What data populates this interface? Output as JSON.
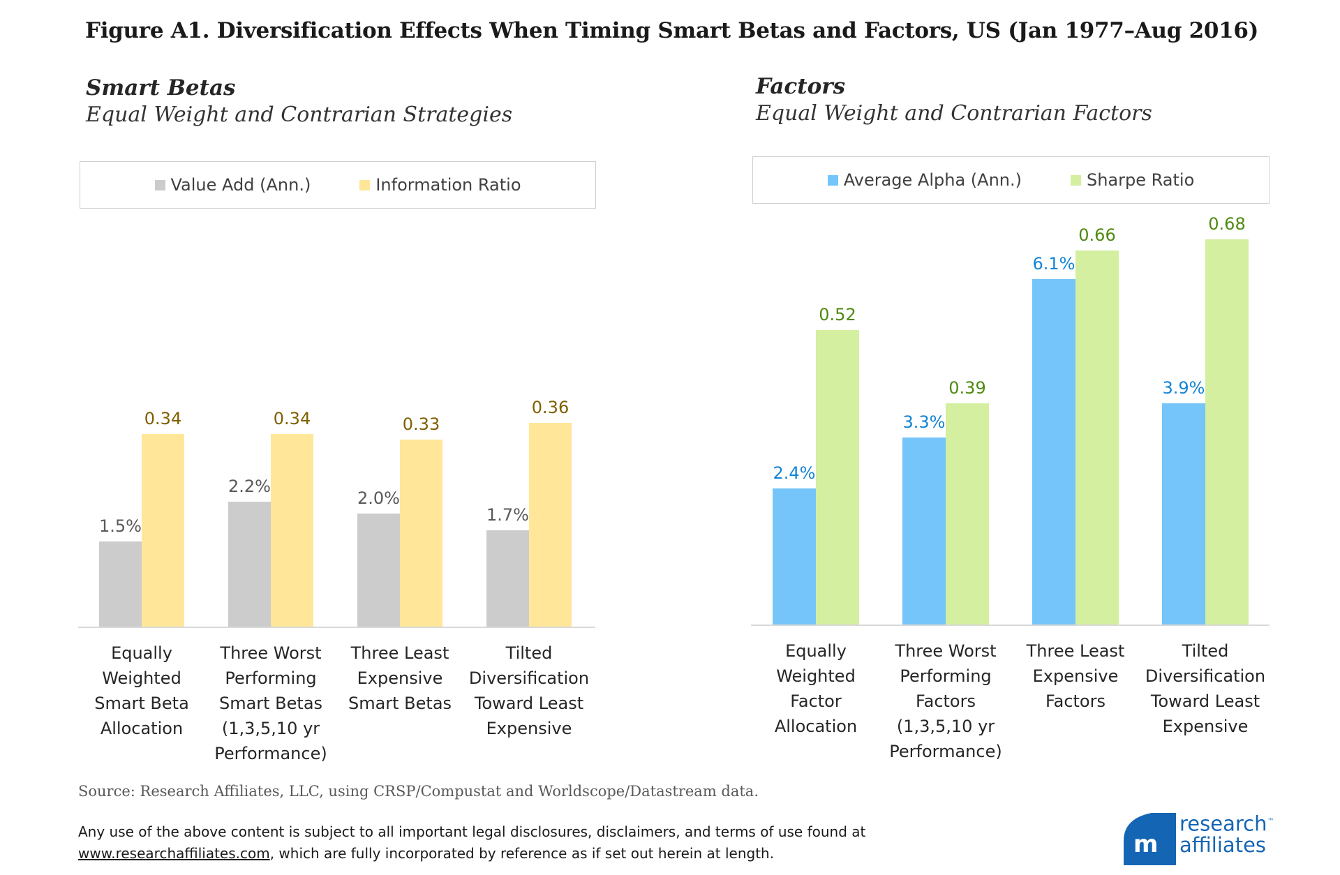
{
  "title": "Figure A1. Diversification Effects When Timing Smart Betas and Factors, US (Jan 1977–Aug 2016)",
  "chart_data": [
    {
      "type": "bar",
      "title": "Smart Betas",
      "subtitle": "Equal Weight and Contrarian Strategies",
      "categories": [
        [
          "Equally",
          "Weighted",
          "Smart Beta",
          "Allocation"
        ],
        [
          "Three Worst",
          "Performing",
          "Smart Betas",
          "(1,3,5,10 yr",
          "Performance)"
        ],
        [
          "Three Least",
          "Expensive",
          "Smart Betas"
        ],
        [
          "Tilted",
          "Diversification",
          "Toward Least",
          "Expensive"
        ]
      ],
      "legend_position": "top",
      "series": [
        {
          "name": "Value Add (Ann.)",
          "values": [
            1.5,
            2.2,
            2.0,
            1.7
          ],
          "labels": [
            "1.5%",
            "2.2%",
            "2.0%",
            "1.7%"
          ],
          "unit": "percent",
          "color": "#cccccc",
          "label_color": "#595959"
        },
        {
          "name": "Information Ratio",
          "values": [
            0.34,
            0.34,
            0.33,
            0.36
          ],
          "labels": [
            "0.34",
            "0.34",
            "0.33",
            "0.36"
          ],
          "unit": "ratio",
          "color": "#ffe699",
          "label_color": "#7f6000"
        }
      ],
      "grid": false
    },
    {
      "type": "bar",
      "title": "Factors",
      "subtitle": "Equal Weight and Contrarian Factors",
      "categories": [
        [
          "Equally",
          "Weighted",
          "Factor",
          "Allocation"
        ],
        [
          "Three Worst",
          "Performing",
          "Factors",
          "(1,3,5,10 yr",
          "Performance)"
        ],
        [
          "Three Least",
          "Expensive",
          "Factors"
        ],
        [
          "Tilted",
          "Diversification",
          "Toward Least",
          "Expensive"
        ]
      ],
      "legend_position": "top",
      "series": [
        {
          "name": "Average Alpha (Ann.)",
          "values": [
            2.4,
            3.3,
            6.1,
            3.9
          ],
          "labels": [
            "2.4%",
            "3.3%",
            "6.1%",
            "3.9%"
          ],
          "unit": "percent",
          "color": "#75c5fa",
          "label_color": "#1384d6"
        },
        {
          "name": "Sharpe Ratio",
          "values": [
            0.52,
            0.39,
            0.66,
            0.68
          ],
          "labels": [
            "0.52",
            "0.39",
            "0.66",
            "0.68"
          ],
          "unit": "ratio",
          "color": "#d3ef9f",
          "label_color": "#4f8a10"
        }
      ],
      "grid": false
    }
  ],
  "source": "Source: Research Affiliates, LLC, using CRSP/Compustat and Worldscope/Datastream data.",
  "disclaimer": {
    "line1": "Any use of the above content is subject to all important legal disclosures, disclaimers, and terms of use found at",
    "link": "www.researchaffiliates.com",
    "line2_rest": ", which are fully incorporated by reference as if set out herein at length."
  },
  "logo": {
    "line1": "research",
    "line2": "affiliates",
    "tm": "™"
  }
}
